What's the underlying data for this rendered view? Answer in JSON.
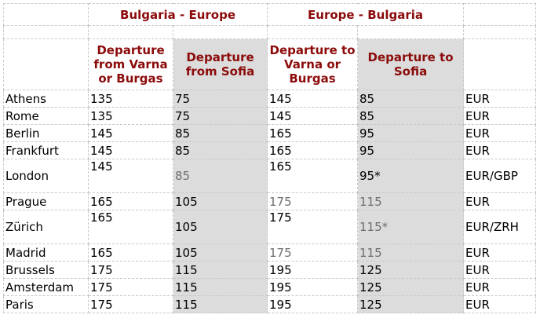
{
  "header": {
    "groups": [
      "Bulgaria - Europe",
      "Europe - Bulgaria"
    ]
  },
  "table": {
    "columns": [
      "Departure from Varna or Burgas",
      "Departure from Sofia",
      "Departure to Varna or Burgas",
      "Departure to Sofia"
    ],
    "rows": [
      [
        "Athens",
        "135",
        "75",
        "145",
        "85",
        "EUR"
      ],
      [
        "Rome",
        "135",
        "75",
        "145",
        "85",
        "EUR"
      ],
      [
        "Berlin",
        "145",
        "85",
        "165",
        "95",
        "EUR"
      ],
      [
        "Frankfurt",
        "145",
        "85",
        "165",
        "95",
        "EUR"
      ],
      [
        "London",
        "145",
        "85",
        "165",
        "95*",
        "EUR/GBP"
      ],
      [
        "Prague",
        "165",
        "105",
        "175",
        "115",
        "EUR"
      ],
      [
        "Zürich",
        "165",
        "105",
        "175",
        "115*",
        "EUR/ZRH"
      ],
      [
        "Madrid",
        "165",
        "105",
        "175",
        "115",
        "EUR"
      ],
      [
        "Brussels",
        "175",
        "115",
        "195",
        "125",
        "EUR"
      ],
      [
        "Amsterdam",
        "175",
        "115",
        "195",
        "125",
        "EUR"
      ],
      [
        "Paris",
        "175",
        "115",
        "195",
        "125",
        "EUR"
      ]
    ]
  }
}
